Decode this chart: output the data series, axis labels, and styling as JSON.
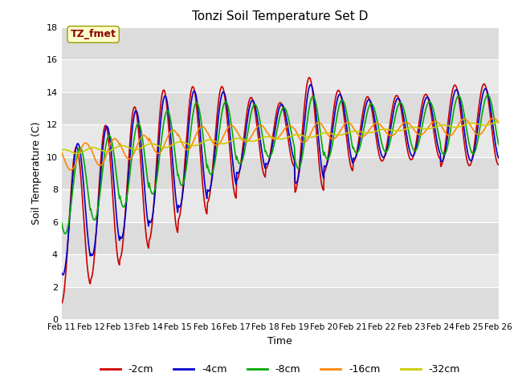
{
  "title": "Tonzi Soil Temperature Set D",
  "xlabel": "Time",
  "ylabel": "Soil Temperature (C)",
  "ylim": [
    0,
    18
  ],
  "yticks": [
    0,
    2,
    4,
    6,
    8,
    10,
    12,
    14,
    16,
    18
  ],
  "x_labels": [
    "Feb 11",
    "Feb 12",
    "Feb 13",
    "Feb 14",
    "Feb 15",
    "Feb 16",
    "Feb 17",
    "Feb 18",
    "Feb 19",
    "Feb 20",
    "Feb 21",
    "Feb 22",
    "Feb 23",
    "Feb 24",
    "Feb 25",
    "Feb 26"
  ],
  "annotation_text": "TZ_fmet",
  "annotation_color": "#8B0000",
  "annotation_bg": "#FFFFCC",
  "series": {
    "-2cm": {
      "color": "#CC0000",
      "lw": 1.2
    },
    "-4cm": {
      "color": "#0000CC",
      "lw": 1.2
    },
    "-8cm": {
      "color": "#00AA00",
      "lw": 1.2
    },
    "-16cm": {
      "color": "#FF8800",
      "lw": 1.2
    },
    "-32cm": {
      "color": "#CCCC00",
      "lw": 1.2
    }
  },
  "bg_color": "#E8E8E8",
  "grid_color": "#FFFFFF",
  "alt_bg_color": "#D0D0D0"
}
